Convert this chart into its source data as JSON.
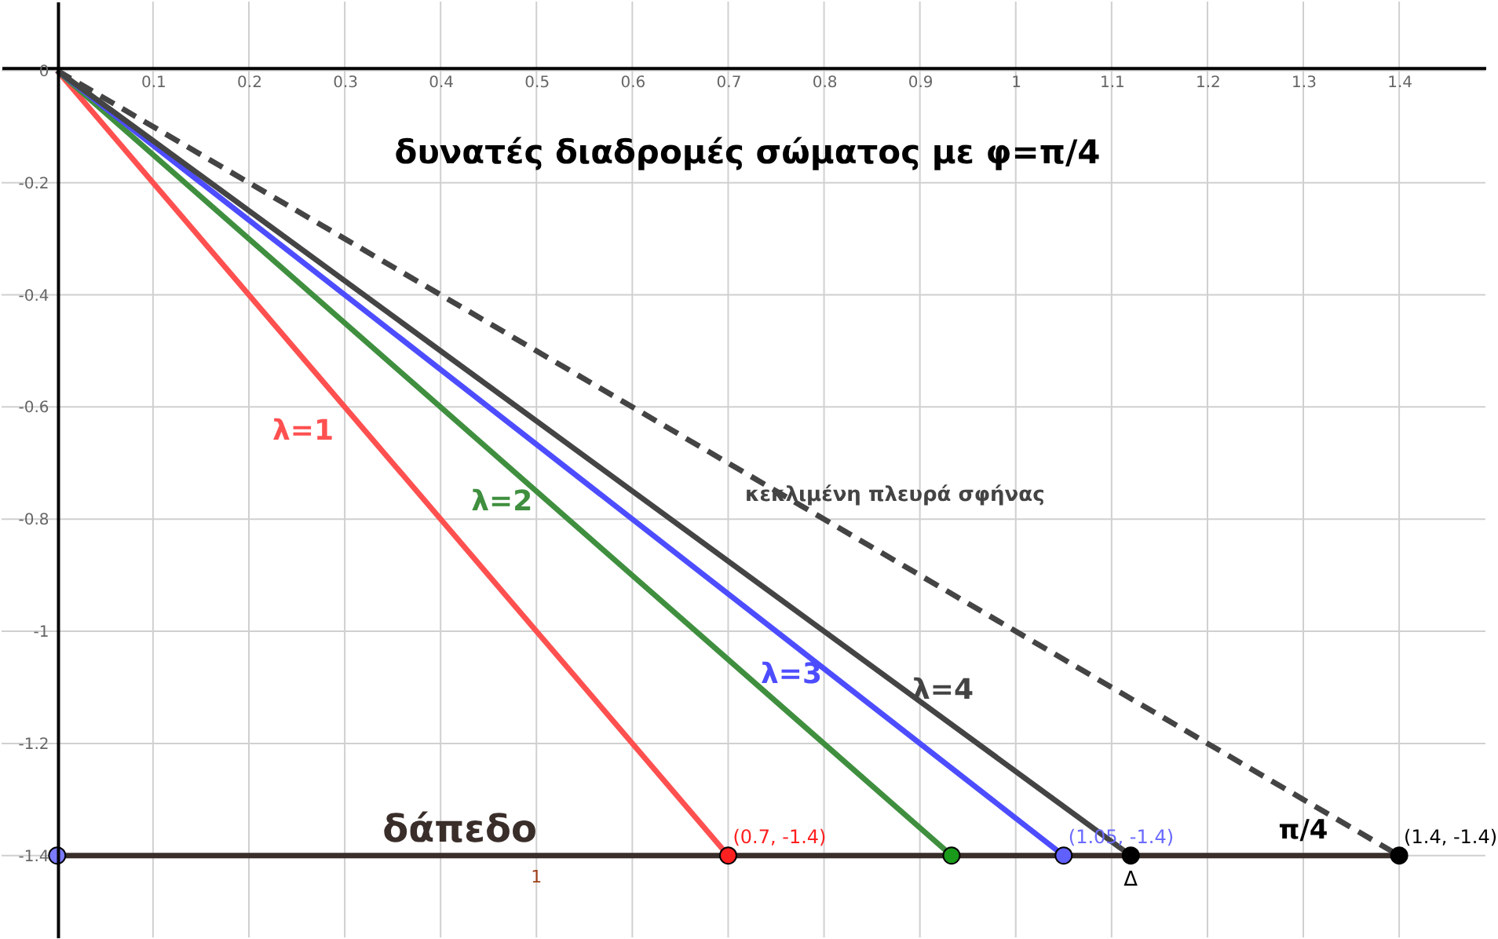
{
  "chart_data": {
    "type": "line",
    "title": "δυνατές διαδρομές σώματος με φ=π/4",
    "xlim": [
      -0.058,
      1.49
    ],
    "ylim": [
      -1.546,
      0.123
    ],
    "xticks": [
      0.1,
      0.2,
      0.3,
      0.4,
      0.5,
      0.6,
      0.7,
      0.8,
      0.9,
      1,
      1.1,
      1.2,
      1.3,
      1.4
    ],
    "yticks": [
      0,
      -0.2,
      -0.4,
      -0.6,
      -0.8,
      -1,
      -1.2,
      -1.4
    ],
    "grid": true,
    "series": [
      {
        "name": "λ=1",
        "color": "#ff5050",
        "x": [
          0,
          0.7
        ],
        "values": [
          0,
          -1.4
        ]
      },
      {
        "name": "λ=2",
        "color": "#3f8f3f",
        "x": [
          0,
          0.933
        ],
        "values": [
          0,
          -1.4
        ]
      },
      {
        "name": "λ=3",
        "color": "#4d4dff",
        "x": [
          0,
          1.05
        ],
        "values": [
          0,
          -1.4
        ]
      },
      {
        "name": "λ=4",
        "color": "#444444",
        "x": [
          0,
          1.12
        ],
        "values": [
          0,
          -1.4
        ]
      },
      {
        "name": "κεκλιμένη πλευρά σφήνας",
        "color": "#444444",
        "line_style": "dashed",
        "x": [
          0,
          1.4
        ],
        "values": [
          0,
          -1.4
        ]
      },
      {
        "name": "δάπεδο",
        "color": "#3a2e2a",
        "x": [
          0,
          1.4
        ],
        "values": [
          -1.4,
          -1.4
        ]
      },
      {
        "type": "scatter",
        "x": [
          0,
          0.7,
          0.933,
          1.05,
          1.12,
          1.4
        ],
        "values": [
          -1.4,
          -1.4,
          -1.4,
          -1.4,
          -1.4,
          -1.4
        ],
        "colors": [
          "#7b7bff",
          "#ff2020",
          "#1a9a1a",
          "#6060ff",
          "#000000",
          "#000000"
        ]
      }
    ],
    "annotations": [
      {
        "text": "(0.7, -1.4)",
        "x": 0.7,
        "y": -1.4
      },
      {
        "text": "(1.05, -1.4)",
        "x": 1.05,
        "y": -1.4
      },
      {
        "text": "Δ",
        "x": 1.12,
        "y": -1.4
      },
      {
        "text": "π/4",
        "x": 1.3,
        "y": -1.4
      },
      {
        "text": "(1.4, -1.4)",
        "x": 1.4,
        "y": -1.4
      },
      {
        "text": "1",
        "x": 0.5,
        "y": -1.4
      }
    ]
  }
}
